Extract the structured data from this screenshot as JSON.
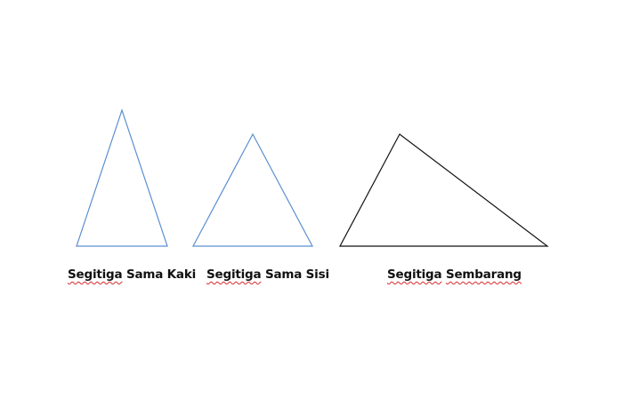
{
  "colors": {
    "blue_outline": "#5b8fd0",
    "black_outline": "#111111",
    "spellcheck_underline": "#d62a2a"
  },
  "triangles": [
    {
      "id": "isosceles",
      "stroke": "#5b8fd0",
      "label_words": [
        {
          "text": "Segitiga",
          "misspelled": true
        },
        {
          "text": "Sama",
          "misspelled": false
        },
        {
          "text": "Kaki",
          "misspelled": false
        }
      ]
    },
    {
      "id": "equilateral",
      "stroke": "#5b8fd0",
      "label_words": [
        {
          "text": "Segitiga",
          "misspelled": true
        },
        {
          "text": "Sama",
          "misspelled": false
        },
        {
          "text": "Sisi",
          "misspelled": false
        }
      ]
    },
    {
      "id": "scalene",
      "stroke": "#111111",
      "label_words": [
        {
          "text": "Segitiga",
          "misspelled": true
        },
        {
          "text": "Sembarang",
          "misspelled": true
        }
      ]
    }
  ]
}
